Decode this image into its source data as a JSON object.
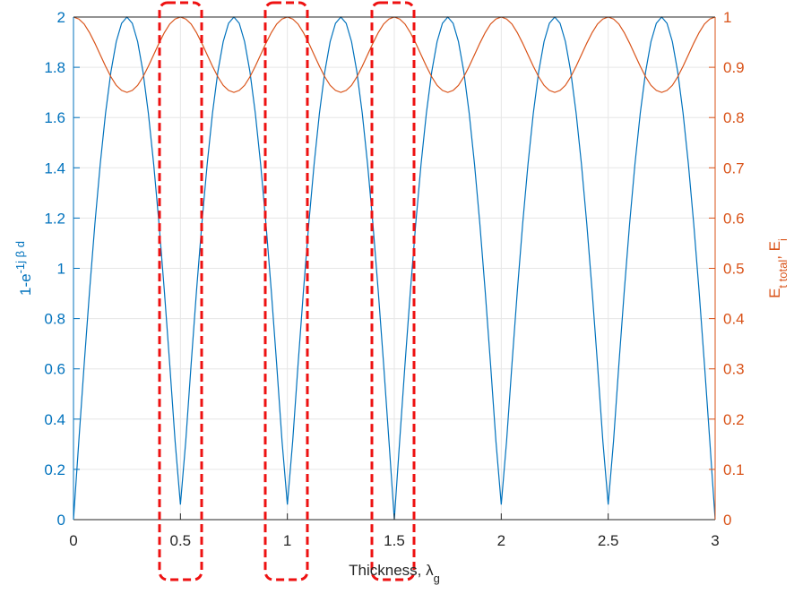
{
  "chart_data": {
    "type": "line",
    "xlabel": [
      {
        "text": "Thickness,  λ"
      },
      {
        "text": "g",
        "shift": "sub"
      }
    ],
    "ylabel": [
      {
        "text": "1-e"
      },
      {
        "text": "-1j β d",
        "shift": "super"
      }
    ],
    "y2label": [
      {
        "text": "E"
      },
      {
        "text": "t total",
        "shift": "sub"
      },
      {
        "text": ", E"
      },
      {
        "text": "i",
        "shift": "sub"
      }
    ],
    "xlim": [
      0,
      3
    ],
    "xticks": [
      0,
      0.5,
      1,
      1.5,
      2,
      2.5,
      3
    ],
    "ylim": [
      0,
      2
    ],
    "yticks": [
      0,
      0.2,
      0.4,
      0.6,
      0.8,
      1,
      1.2,
      1.4,
      1.6,
      1.8,
      2
    ],
    "y2lim": [
      0,
      1
    ],
    "y2ticks": [
      0,
      0.1,
      0.2,
      0.3,
      0.4,
      0.5,
      0.6,
      0.7,
      0.8,
      0.9,
      1
    ],
    "grid": true,
    "x": [
      0,
      0.025,
      0.05,
      0.075,
      0.1,
      0.125,
      0.15,
      0.175,
      0.2,
      0.225,
      0.25,
      0.275,
      0.3,
      0.325,
      0.35,
      0.375,
      0.4,
      0.425,
      0.45,
      0.475,
      0.5,
      0.525,
      0.55,
      0.575,
      0.6,
      0.625,
      0.65,
      0.675,
      0.7,
      0.725,
      0.75,
      0.775,
      0.8,
      0.825,
      0.85,
      0.875,
      0.9,
      0.925,
      0.95,
      0.975,
      1,
      1.025,
      1.05,
      1.075,
      1.1,
      1.125,
      1.15,
      1.175,
      1.2,
      1.225,
      1.25,
      1.275,
      1.3,
      1.325,
      1.35,
      1.375,
      1.4,
      1.425,
      1.45,
      1.475,
      1.5,
      1.525,
      1.55,
      1.575,
      1.6,
      1.625,
      1.65,
      1.675,
      1.7,
      1.725,
      1.75,
      1.775,
      1.8,
      1.825,
      1.85,
      1.875,
      1.9,
      1.925,
      1.95,
      1.975,
      2,
      2.025,
      2.05,
      2.075,
      2.1,
      2.125,
      2.15,
      2.175,
      2.2,
      2.225,
      2.25,
      2.275,
      2.3,
      2.325,
      2.35,
      2.375,
      2.4,
      2.425,
      2.45,
      2.475,
      2.5,
      2.525,
      2.55,
      2.575,
      2.6,
      2.625,
      2.65,
      2.675,
      2.7,
      2.725,
      2.75,
      2.775,
      2.8,
      2.825,
      2.85,
      2.875,
      2.9,
      2.925,
      2.95,
      2.975,
      3
    ],
    "series": [
      {
        "color": "#0072bd",
        "axis": "y",
        "values": [
          0,
          0.313,
          0.618,
          0.908,
          1.176,
          1.414,
          1.618,
          1.782,
          1.902,
          1.975,
          2,
          1.975,
          1.902,
          1.782,
          1.618,
          1.414,
          1.176,
          0.908,
          0.618,
          0.313,
          0.06,
          0.313,
          0.618,
          0.908,
          1.176,
          1.414,
          1.618,
          1.782,
          1.902,
          1.975,
          2,
          1.975,
          1.902,
          1.782,
          1.618,
          1.414,
          1.176,
          0.908,
          0.618,
          0.313,
          0.06,
          0.313,
          0.618,
          0.908,
          1.176,
          1.414,
          1.618,
          1.782,
          1.902,
          1.975,
          2,
          1.975,
          1.902,
          1.782,
          1.618,
          1.414,
          1.176,
          0.908,
          0.618,
          0.313,
          0,
          0.313,
          0.618,
          0.908,
          1.176,
          1.414,
          1.618,
          1.782,
          1.902,
          1.975,
          2,
          1.975,
          1.902,
          1.782,
          1.618,
          1.414,
          1.176,
          0.908,
          0.618,
          0.313,
          0.06,
          0.313,
          0.618,
          0.908,
          1.176,
          1.414,
          1.618,
          1.782,
          1.902,
          1.975,
          2,
          1.975,
          1.902,
          1.782,
          1.618,
          1.414,
          1.176,
          0.908,
          0.618,
          0.313,
          0.06,
          0.313,
          0.618,
          0.908,
          1.176,
          1.414,
          1.618,
          1.782,
          1.902,
          1.975,
          2,
          1.975,
          1.902,
          1.782,
          1.618,
          1.414,
          1.176,
          0.908,
          0.618,
          0.313,
          0
        ]
      },
      {
        "color": "#d95319",
        "axis": "y2",
        "values": [
          1,
          0.996,
          0.986,
          0.969,
          0.948,
          0.925,
          0.902,
          0.881,
          0.864,
          0.854,
          0.85,
          0.854,
          0.864,
          0.881,
          0.902,
          0.925,
          0.948,
          0.969,
          0.986,
          0.996,
          1,
          0.996,
          0.986,
          0.969,
          0.948,
          0.925,
          0.902,
          0.881,
          0.864,
          0.854,
          0.85,
          0.854,
          0.864,
          0.881,
          0.902,
          0.925,
          0.948,
          0.969,
          0.986,
          0.996,
          1,
          0.996,
          0.986,
          0.969,
          0.948,
          0.925,
          0.902,
          0.881,
          0.864,
          0.854,
          0.85,
          0.854,
          0.864,
          0.881,
          0.902,
          0.925,
          0.948,
          0.969,
          0.986,
          0.996,
          1,
          0.996,
          0.986,
          0.969,
          0.948,
          0.925,
          0.902,
          0.881,
          0.864,
          0.854,
          0.85,
          0.854,
          0.864,
          0.881,
          0.902,
          0.925,
          0.948,
          0.969,
          0.986,
          0.996,
          1,
          0.996,
          0.986,
          0.969,
          0.948,
          0.925,
          0.902,
          0.881,
          0.864,
          0.854,
          0.85,
          0.854,
          0.864,
          0.881,
          0.902,
          0.925,
          0.948,
          0.969,
          0.986,
          0.996,
          1,
          0.996,
          0.986,
          0.969,
          0.948,
          0.925,
          0.902,
          0.881,
          0.864,
          0.854,
          0.85,
          0.854,
          0.864,
          0.881,
          0.902,
          0.925,
          0.948,
          0.969,
          0.986,
          0.996,
          1
        ]
      }
    ]
  }
}
